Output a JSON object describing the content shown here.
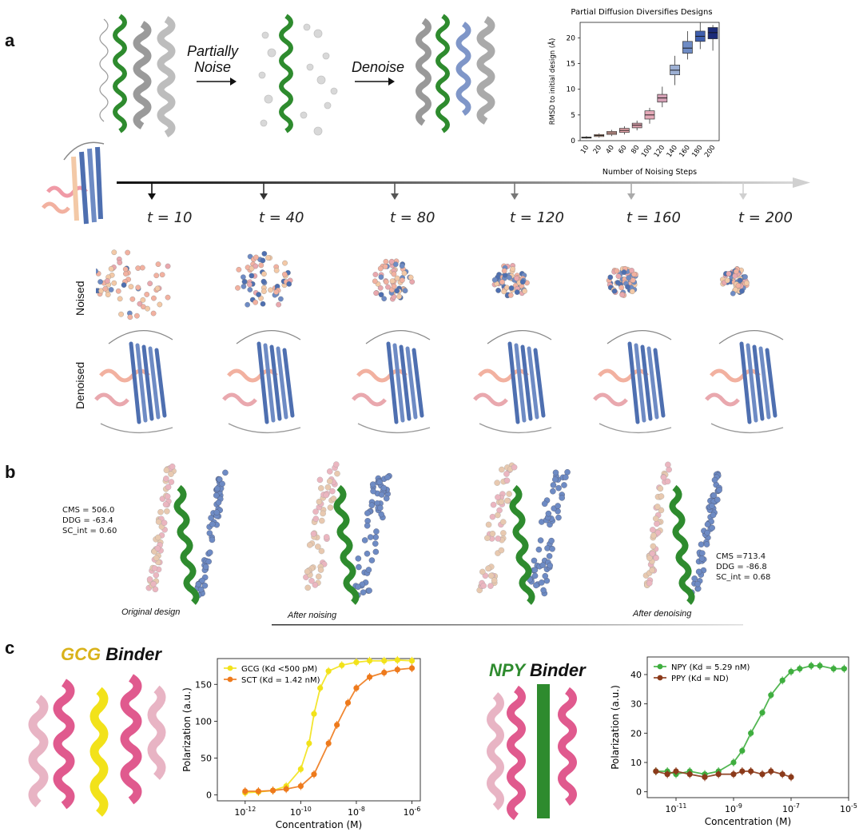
{
  "panels": {
    "a": "a",
    "b": "b",
    "c": "c"
  },
  "panel_a": {
    "arrow1": [
      "Partially",
      "Noise"
    ],
    "arrow2": "Denoise",
    "timesteps": [
      "t = 10",
      "t = 40",
      "t = 80",
      "t = 120",
      "t = 160",
      "t = 200"
    ],
    "rows": {
      "noised": "Noised",
      "denoised": "Denoised"
    }
  },
  "panel_b": {
    "original_metrics": "CMS = 506.0\nDDG = -63.4\nSC_int = 0.60",
    "denoised_metrics": "CMS =713.4\nDDG = -86.8\nSC_int = 0.68",
    "captions": {
      "original": "Original design",
      "noising": "After noising",
      "denoising": "After denoising"
    }
  },
  "panel_c": {
    "gcg_title_a": "GCG",
    "gcg_title_b": "Binder",
    "npy_title_a": "NPY",
    "npy_title_b": "Binder"
  },
  "colors": {
    "green": "#2e8b2e",
    "yellow": "#f2e21a",
    "orange": "#ee7a1c",
    "pink": "#e05a8e",
    "brown": "#8b3a1a",
    "blue": "#4e6fb0"
  },
  "chart_data": [
    {
      "type": "box",
      "title": "Partial Diffusion Diversifies Designs",
      "xlabel": "Number of Noising Steps",
      "ylabel": "RMSD to initial design (Å)",
      "categories": [
        "10",
        "20",
        "40",
        "60",
        "80",
        "100",
        "120",
        "140",
        "160",
        "180",
        "200"
      ],
      "medians": [
        0.6,
        1.0,
        1.5,
        2.0,
        3.0,
        5.0,
        8.3,
        13.7,
        18.0,
        20.3,
        21.0
      ],
      "q1": [
        0.5,
        0.8,
        1.2,
        1.6,
        2.5,
        4.2,
        7.5,
        12.8,
        17.0,
        19.3,
        19.8
      ],
      "q3": [
        0.7,
        1.2,
        1.8,
        2.4,
        3.4,
        5.8,
        9.0,
        14.7,
        19.3,
        21.3,
        22.0
      ],
      "whisker_low": [
        0.4,
        0.6,
        0.9,
        1.2,
        2.0,
        3.3,
        6.5,
        10.8,
        15.8,
        17.8,
        17.5
      ],
      "whisker_high": [
        0.9,
        1.4,
        2.1,
        2.8,
        3.9,
        6.4,
        10.5,
        16.5,
        21.3,
        23.0,
        22.5
      ],
      "box_colors": [
        "#f3c9a7",
        "#f2c0a8",
        "#efb5ab",
        "#e9a8ae",
        "#dba0ac",
        "#e4a9b8",
        "#d4a0b5",
        "#9db0d3",
        "#6e8bc4",
        "#3f5fae",
        "#1b2a78"
      ],
      "ylim": [
        0,
        23
      ],
      "yticks": [
        0,
        5,
        10,
        15,
        20
      ]
    },
    {
      "type": "scatter",
      "xlabel": "Concentration (M)",
      "ylabel": "Polarization (a.u.)",
      "x_scale": "log",
      "xlim": [
        1e-13,
        2e-06
      ],
      "ylim": [
        -8,
        185
      ],
      "xtick_labels": [
        "10^-12",
        "10^-10",
        "10^-8",
        "10^-6"
      ],
      "xtick_values": [
        1e-12,
        1e-10,
        1e-08,
        1e-06
      ],
      "yticks": [
        0,
        50,
        100,
        150
      ],
      "legend": "top-left",
      "series": [
        {
          "name": "GCG (Kd <500 pM)",
          "color": "#f2e21a",
          "x": [
            1e-12,
            3e-12,
            1e-11,
            3e-11,
            1e-10,
            2e-10,
            3e-10,
            5e-10,
            1e-09,
            3e-09,
            1e-08,
            3e-08,
            1e-07,
            3e-07,
            1e-06
          ],
          "y": [
            3,
            4,
            6,
            12,
            35,
            70,
            110,
            145,
            168,
            176,
            180,
            182,
            182,
            183,
            182
          ]
        },
        {
          "name": "SCT (Kd = 1.42 nM)",
          "color": "#ee7a1c",
          "x": [
            1e-12,
            3e-12,
            1e-11,
            3e-11,
            1e-10,
            3e-10,
            1e-09,
            2e-09,
            5e-09,
            1e-08,
            3e-08,
            1e-07,
            3e-07,
            1e-06
          ],
          "y": [
            5,
            5,
            6,
            8,
            12,
            28,
            70,
            95,
            125,
            145,
            160,
            166,
            170,
            172
          ]
        }
      ]
    },
    {
      "type": "scatter",
      "xlabel": "Concentration (M)",
      "ylabel": "Polarization (a.u.)",
      "x_scale": "log",
      "xlim": [
        1e-12,
        1e-05
      ],
      "ylim": [
        -2,
        46
      ],
      "xtick_labels": [
        "10^-11",
        "10^-9",
        "10^-7",
        "10^-5"
      ],
      "xtick_values": [
        1e-11,
        1e-09,
        1e-07,
        1e-05
      ],
      "yticks": [
        0,
        10,
        20,
        30,
        40
      ],
      "legend": "top-left",
      "series": [
        {
          "name": "NPY (Kd = 5.29 nM)",
          "color": "#3fae3f",
          "x": [
            2e-12,
            5e-12,
            1e-11,
            3e-11,
            1e-10,
            3e-10,
            1e-09,
            2e-09,
            4e-09,
            1e-08,
            2e-08,
            5e-08,
            1e-07,
            2e-07,
            5e-07,
            1e-06,
            3e-06,
            7e-06
          ],
          "y": [
            7,
            7,
            6,
            7,
            6,
            7,
            10,
            14,
            20,
            27,
            33,
            38,
            41,
            42,
            43,
            43,
            42,
            42
          ]
        },
        {
          "name": "PPY (Kd = ND)",
          "color": "#8b3a1a",
          "x": [
            2e-12,
            5e-12,
            1e-11,
            3e-11,
            1e-10,
            3e-10,
            1e-09,
            2e-09,
            4e-09,
            1e-08,
            2e-08,
            5e-08,
            1e-07
          ],
          "y": [
            7,
            6,
            7,
            6,
            5,
            6,
            6,
            7,
            7,
            6,
            7,
            6,
            5
          ]
        }
      ]
    }
  ]
}
